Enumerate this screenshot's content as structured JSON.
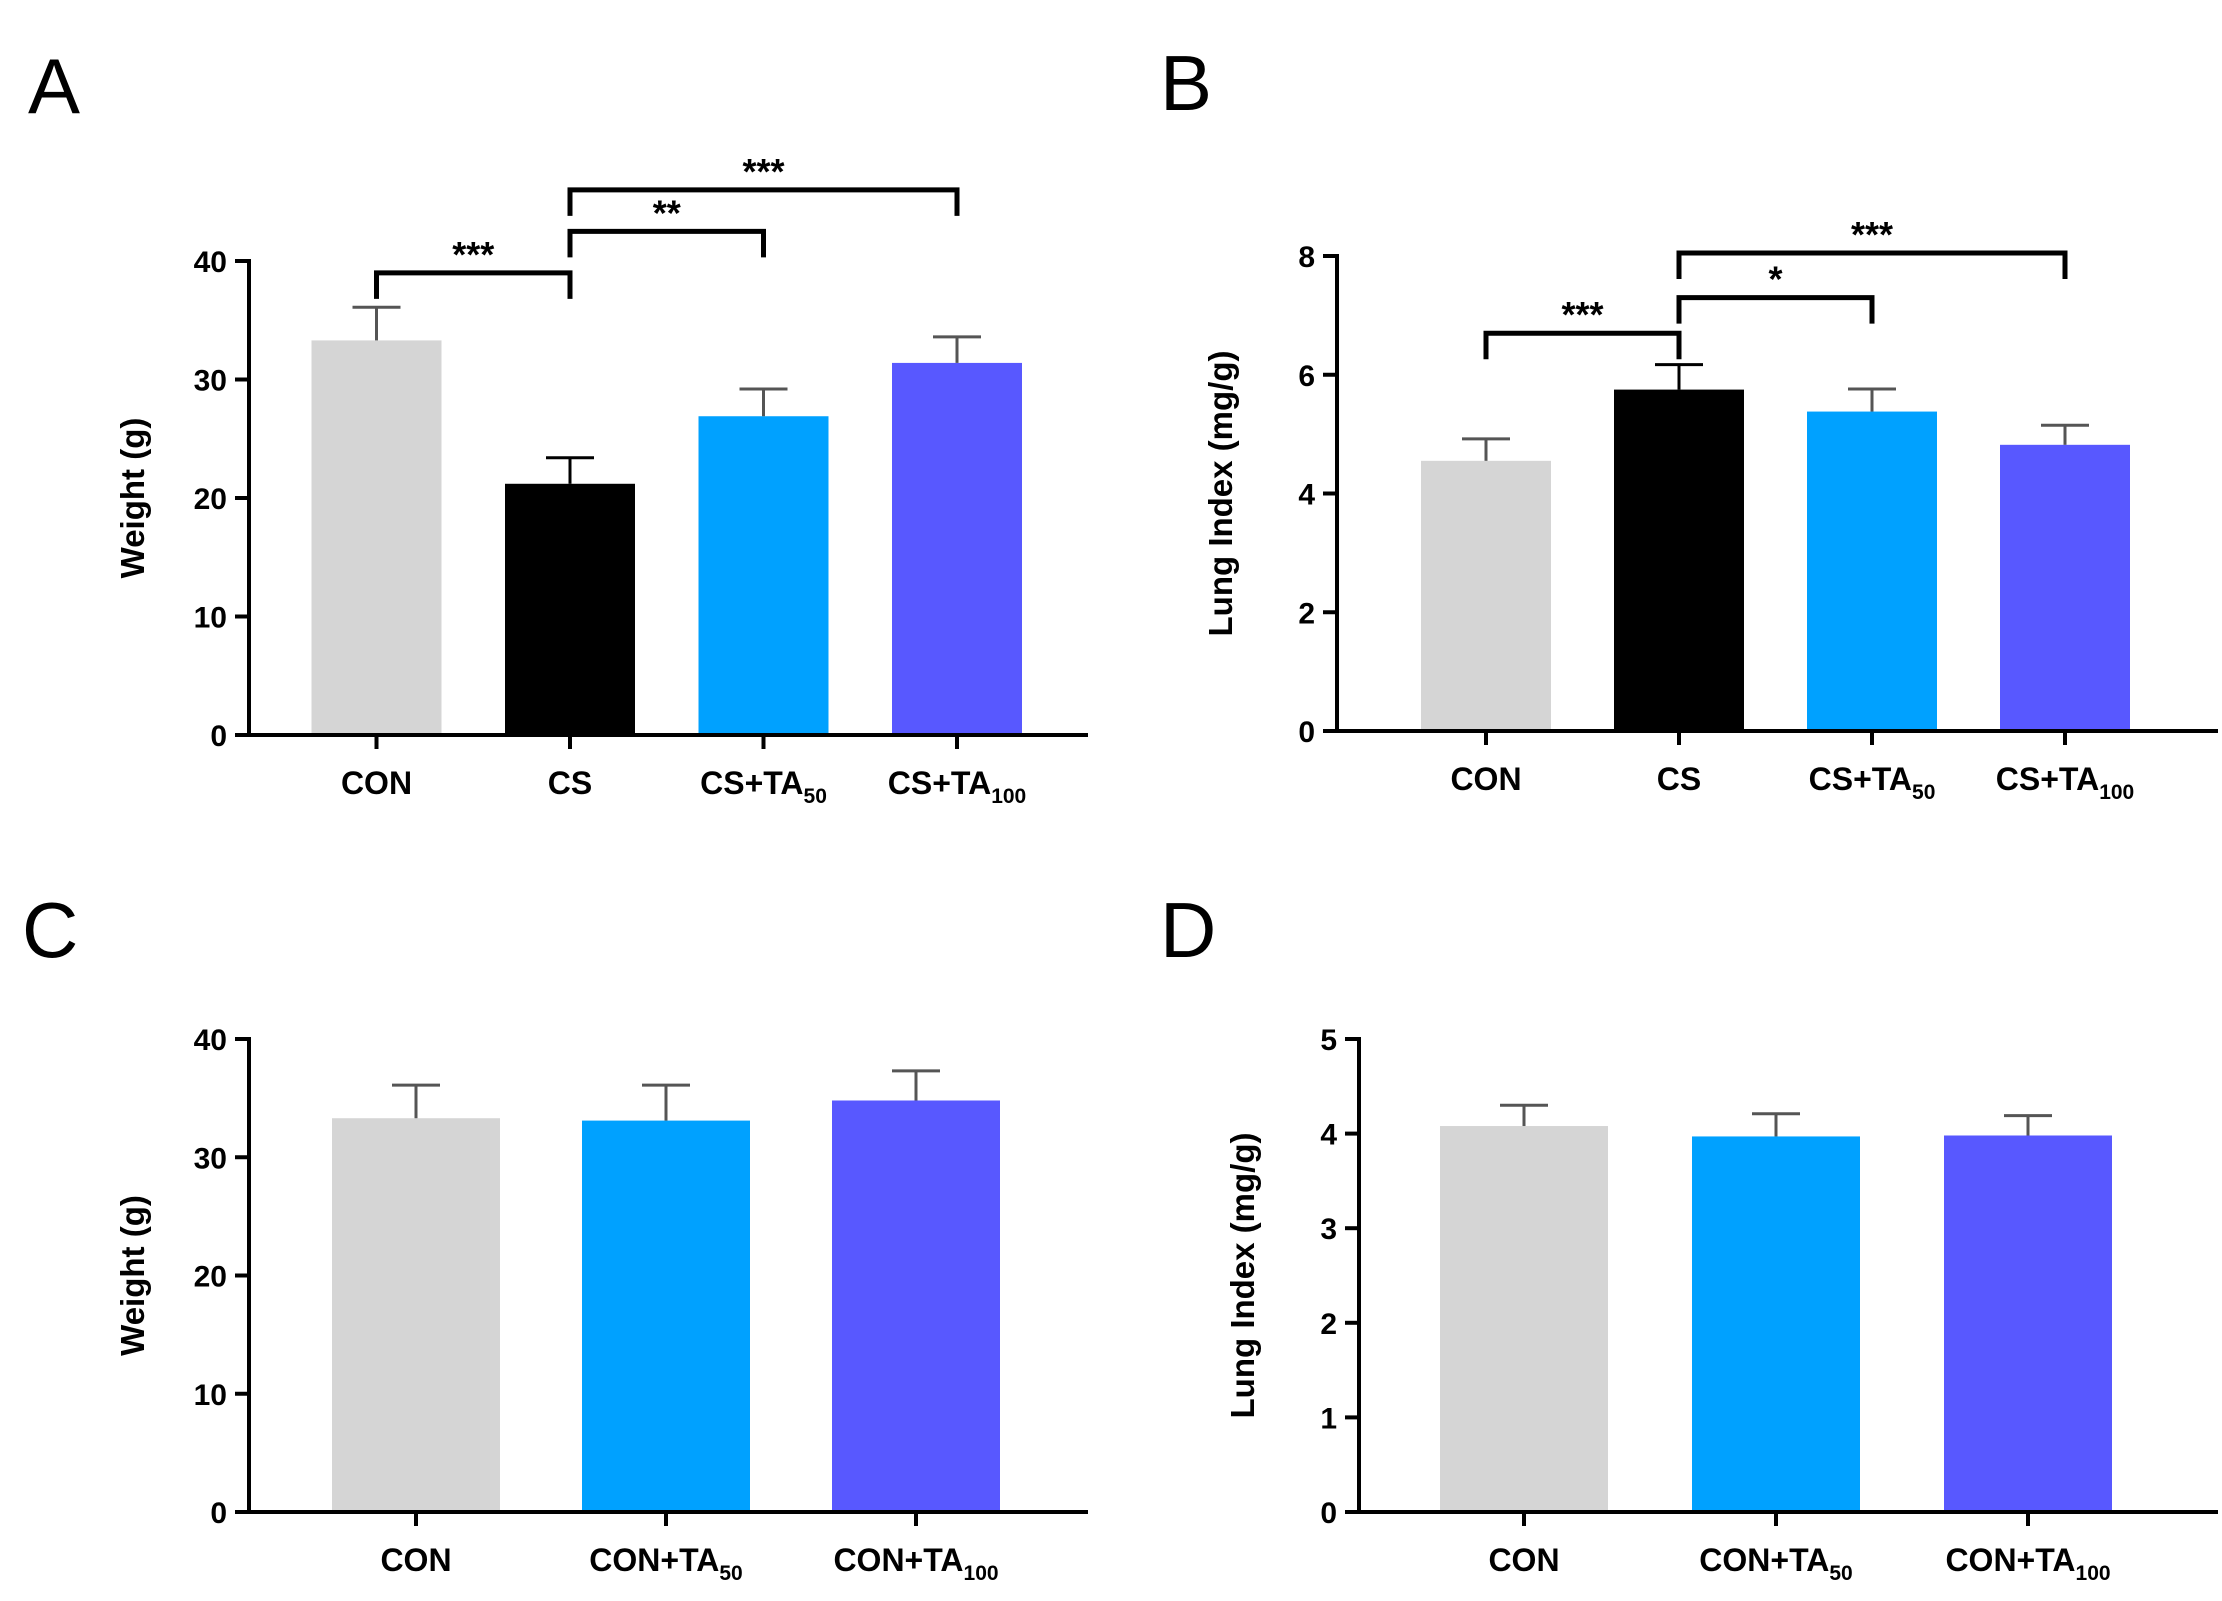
{
  "figure": {
    "panels": [
      "A",
      "B",
      "C",
      "D"
    ]
  },
  "chart_data": [
    {
      "panel": "A",
      "type": "bar",
      "ylabel": "Weight (g)",
      "ylim": [
        0,
        40
      ],
      "yticks": [
        0,
        10,
        20,
        30,
        40
      ],
      "categories": [
        {
          "main": "CON",
          "sub": ""
        },
        {
          "main": "CS",
          "sub": ""
        },
        {
          "main": "CS+TA",
          "sub": "50"
        },
        {
          "main": "CS+TA",
          "sub": "100"
        }
      ],
      "values": [
        33.3,
        21.2,
        26.9,
        31.4
      ],
      "errors": [
        2.8,
        2.2,
        2.3,
        2.2
      ],
      "colors": [
        "#d5d5d5",
        "#000000",
        "#00a1ff",
        "#5858ff"
      ],
      "significance": [
        {
          "from": 0,
          "to": 1,
          "label": "***",
          "y": 39.0
        },
        {
          "from": 1,
          "to": 2,
          "label": "**",
          "y": 42.5
        },
        {
          "from": 1,
          "to": 3,
          "label": "***",
          "y": 46.0
        }
      ]
    },
    {
      "panel": "B",
      "type": "bar",
      "ylabel": "Lung Index (mg/g)",
      "ylim": [
        0,
        8
      ],
      "yticks": [
        0,
        2,
        4,
        6,
        8
      ],
      "categories": [
        {
          "main": "CON",
          "sub": ""
        },
        {
          "main": "CS",
          "sub": ""
        },
        {
          "main": "CS+TA",
          "sub": "50"
        },
        {
          "main": "CS+TA",
          "sub": "100"
        }
      ],
      "values": [
        4.55,
        5.75,
        5.38,
        4.82
      ],
      "errors": [
        0.37,
        0.42,
        0.38,
        0.33
      ],
      "colors": [
        "#d5d5d5",
        "#000000",
        "#00a1ff",
        "#5858ff"
      ],
      "significance": [
        {
          "from": 0,
          "to": 1,
          "label": "***",
          "y": 6.7
        },
        {
          "from": 1,
          "to": 2,
          "label": "*",
          "y": 7.3
        },
        {
          "from": 1,
          "to": 3,
          "label": "***",
          "y": 8.05
        }
      ]
    },
    {
      "panel": "C",
      "type": "bar",
      "ylabel": "Weight (g)",
      "ylim": [
        0,
        40
      ],
      "yticks": [
        0,
        10,
        20,
        30,
        40
      ],
      "categories": [
        {
          "main": "CON",
          "sub": ""
        },
        {
          "main": "CON+TA",
          "sub": "50"
        },
        {
          "main": "CON+TA",
          "sub": "100"
        }
      ],
      "values": [
        33.3,
        33.1,
        34.8
      ],
      "errors": [
        2.8,
        3.0,
        2.5
      ],
      "colors": [
        "#d5d5d5",
        "#00a1ff",
        "#5858ff"
      ],
      "significance": []
    },
    {
      "panel": "D",
      "type": "bar",
      "ylabel": "Lung Index (mg/g)",
      "ylim": [
        0,
        5
      ],
      "yticks": [
        0,
        1,
        2,
        3,
        4,
        5
      ],
      "categories": [
        {
          "main": "CON",
          "sub": ""
        },
        {
          "main": "CON+TA",
          "sub": "50"
        },
        {
          "main": "CON+TA",
          "sub": "100"
        }
      ],
      "values": [
        4.08,
        3.97,
        3.98
      ],
      "errors": [
        0.22,
        0.24,
        0.21
      ],
      "colors": [
        "#d5d5d5",
        "#00a1ff",
        "#5858ff"
      ],
      "significance": []
    }
  ]
}
